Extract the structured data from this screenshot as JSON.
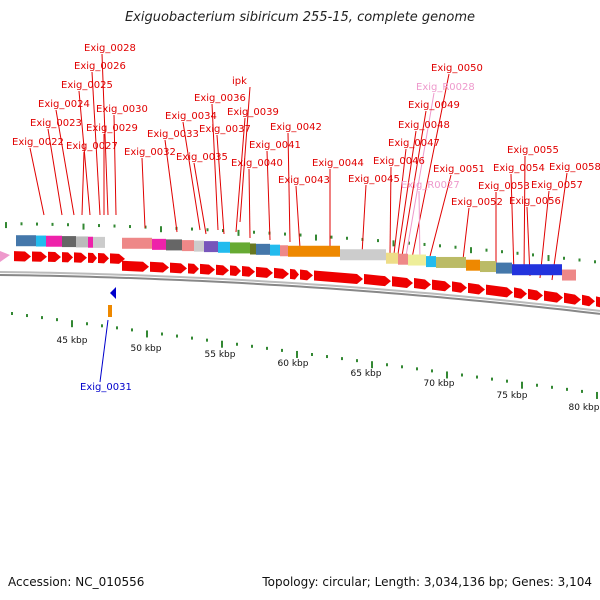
{
  "title": "Exiguobacterium sibiricum 255-15, complete genome",
  "accession": "Accession: NC_010556",
  "summary": "Topology: circular; Length: 3,034,136 bp; Genes: 3,104",
  "colors": {
    "gene_label": "#e00000",
    "rna_label": "#ee99cc",
    "reverse_label": "#0000cc",
    "forward_arrow": "#ee0000",
    "backbone": "#999999",
    "tick": "#338833"
  },
  "scale_labels": [
    "45 kbp",
    "50 kbp",
    "55 kbp",
    "60 kbp",
    "65 kbp",
    "70 kbp",
    "75 kbp",
    "80 kbp"
  ],
  "gene_labels": [
    {
      "text": "Exig_0028",
      "type": "gene"
    },
    {
      "text": "Exig_0026",
      "type": "gene"
    },
    {
      "text": "Exig_0025",
      "type": "gene"
    },
    {
      "text": "Exig_0024",
      "type": "gene"
    },
    {
      "text": "Exig_0030",
      "type": "gene"
    },
    {
      "text": "Exig_0023",
      "type": "gene"
    },
    {
      "text": "Exig_0029",
      "type": "gene"
    },
    {
      "text": "Exig_0022",
      "type": "gene"
    },
    {
      "text": "Exig_0027",
      "type": "gene"
    },
    {
      "text": "Exig_0032",
      "type": "gene"
    },
    {
      "text": "ipk",
      "type": "gene"
    },
    {
      "text": "Exig_0036",
      "type": "gene"
    },
    {
      "text": "Exig_0034",
      "type": "gene"
    },
    {
      "text": "Exig_0039",
      "type": "gene"
    },
    {
      "text": "Exig_0033",
      "type": "gene"
    },
    {
      "text": "Exig_0037",
      "type": "gene"
    },
    {
      "text": "Exig_0035",
      "type": "gene"
    },
    {
      "text": "Exig_0042",
      "type": "gene"
    },
    {
      "text": "Exig_0041",
      "type": "gene"
    },
    {
      "text": "Exig_0040",
      "type": "gene"
    },
    {
      "text": "Exig_0043",
      "type": "gene"
    },
    {
      "text": "Exig_0044",
      "type": "gene"
    },
    {
      "text": "Exig_0045",
      "type": "gene"
    },
    {
      "text": "Exig_0050",
      "type": "gene"
    },
    {
      "text": "Exig_R0028",
      "type": "rna"
    },
    {
      "text": "Exig_0049",
      "type": "gene"
    },
    {
      "text": "Exig_0048",
      "type": "gene"
    },
    {
      "text": "Exig_0047",
      "type": "gene"
    },
    {
      "text": "Exig_0046",
      "type": "gene"
    },
    {
      "text": "Exig_0051",
      "type": "gene"
    },
    {
      "text": "Exig_R0027",
      "type": "rna"
    },
    {
      "text": "Exig_0052",
      "type": "gene"
    },
    {
      "text": "Exig_0055",
      "type": "gene"
    },
    {
      "text": "Exig_0054",
      "type": "gene"
    },
    {
      "text": "Exig_0058",
      "type": "gene"
    },
    {
      "text": "Exig_0053",
      "type": "gene"
    },
    {
      "text": "Exig_0057",
      "type": "gene"
    },
    {
      "text": "Exig_0056",
      "type": "gene"
    },
    {
      "text": "Exig_0031",
      "type": "reverse"
    }
  ],
  "cog_blocks": [
    {
      "color": "#4477aa"
    },
    {
      "color": "#22bbee"
    },
    {
      "color": "#ee22aa"
    },
    {
      "color": "#666666"
    },
    {
      "color": "#bbbbbb"
    },
    {
      "color": "#ee22aa"
    },
    {
      "color": "#cccccc"
    },
    {
      "color": "#ee8888"
    },
    {
      "color": "#ee22aa"
    },
    {
      "color": "#666666"
    },
    {
      "color": "#ee8888"
    },
    {
      "color": "#cccccc"
    },
    {
      "color": "#7755bb"
    },
    {
      "color": "#22bbee"
    },
    {
      "color": "#66aa33"
    },
    {
      "color": "#667722"
    },
    {
      "color": "#4477aa"
    },
    {
      "color": "#22bbee"
    },
    {
      "color": "#ee8888"
    },
    {
      "color": "#ee8800"
    },
    {
      "color": "#cccccc"
    },
    {
      "color": "#eedd88"
    },
    {
      "color": "#ee8888"
    },
    {
      "color": "#eeee99"
    },
    {
      "color": "#22bbee"
    },
    {
      "color": "#bbbb66"
    },
    {
      "color": "#ee8800"
    },
    {
      "color": "#bbbb66"
    },
    {
      "color": "#4477aa"
    },
    {
      "color": "#2233dd"
    },
    {
      "color": "#ee8888"
    }
  ]
}
